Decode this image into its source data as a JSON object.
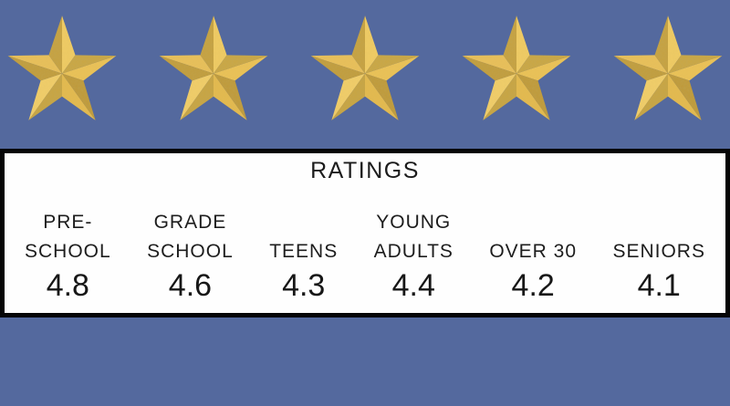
{
  "colors": {
    "background_blue": "#54699e",
    "panel_background": "#fefefe",
    "panel_border": "#060606",
    "text": "#1c1c1c",
    "star_light_gold": "#efcb64",
    "star_dark_gold": "#c7a240"
  },
  "stars": {
    "count": 5
  },
  "panel": {
    "title": "RATINGS",
    "categories": [
      {
        "label_lines": [
          "PRE-",
          "SCHOOL"
        ],
        "value": "4.8"
      },
      {
        "label_lines": [
          "GRADE",
          "SCHOOL"
        ],
        "value": "4.6"
      },
      {
        "label_lines": [
          "TEENS"
        ],
        "value": "4.3"
      },
      {
        "label_lines": [
          "YOUNG",
          "ADULTS"
        ],
        "value": "4.4"
      },
      {
        "label_lines": [
          "OVER 30"
        ],
        "value": "4.2"
      },
      {
        "label_lines": [
          "SENIORS"
        ],
        "value": "4.1"
      }
    ]
  },
  "chart_data": {
    "type": "table",
    "title": "RATINGS",
    "categories": [
      "PRE-SCHOOL",
      "GRADE SCHOOL",
      "TEENS",
      "YOUNG ADULTS",
      "OVER 30",
      "SENIORS"
    ],
    "values": [
      4.8,
      4.6,
      4.3,
      4.4,
      4.2,
      4.1
    ],
    "max_rating": 5,
    "layout": "single row of category labels with numeric rating below each; title centered above"
  }
}
